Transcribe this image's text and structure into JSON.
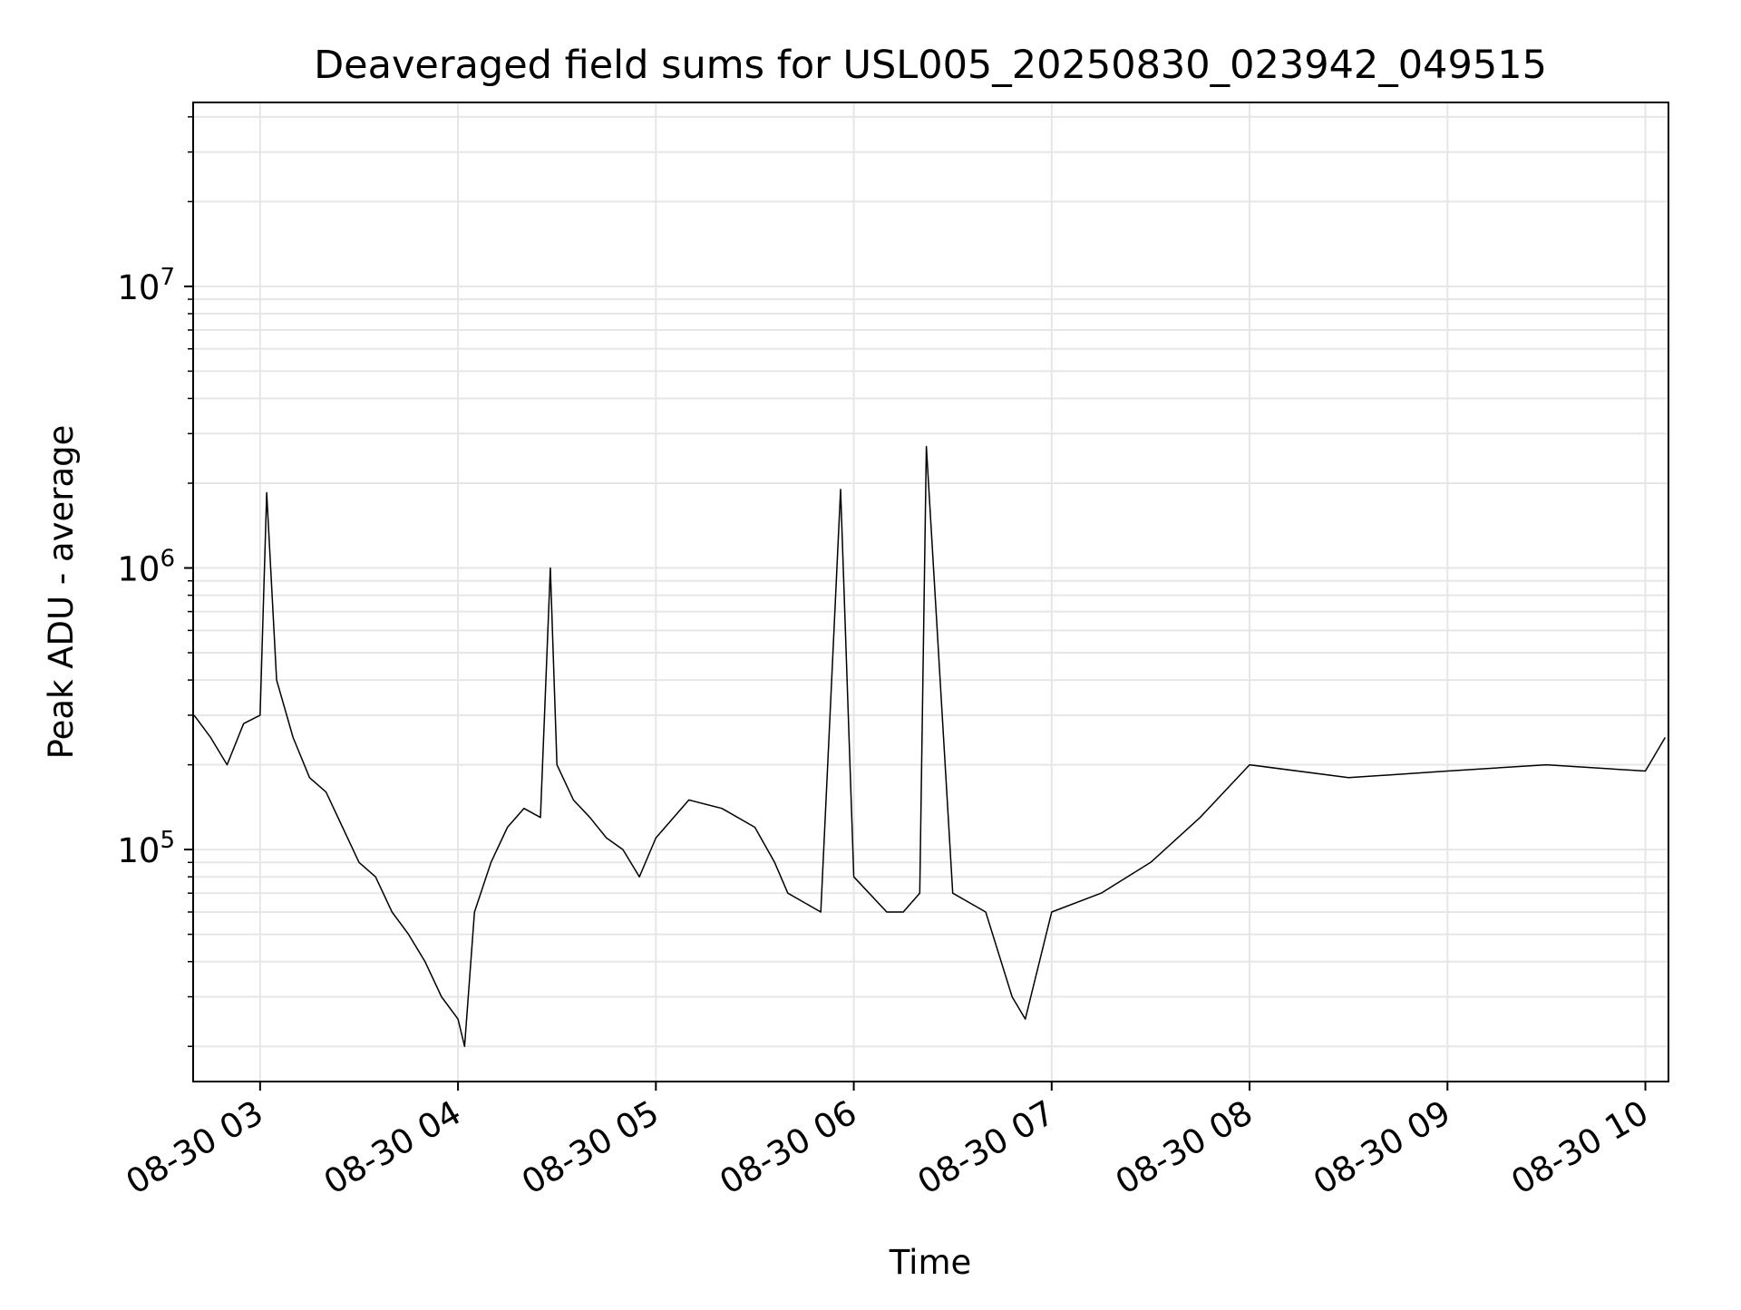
{
  "chart_data": {
    "type": "line",
    "title": "Deaveraged field sums for USL005_20250830_023942_049515",
    "xlabel": "Time",
    "ylabel": "Peak ADU - average",
    "xlim": [
      "2025-08-30 02:39:42",
      "2025-08-30 10:07:00"
    ],
    "ylim": [
      15000,
      45000000
    ],
    "yscale": "log",
    "grid": true,
    "line_color": "#000000",
    "x_ticks": [
      {
        "value": "2025-08-30 03:00",
        "label": "08-30 03"
      },
      {
        "value": "2025-08-30 04:00",
        "label": "08-30 04"
      },
      {
        "value": "2025-08-30 05:00",
        "label": "08-30 05"
      },
      {
        "value": "2025-08-30 06:00",
        "label": "08-30 06"
      },
      {
        "value": "2025-08-30 07:00",
        "label": "08-30 07"
      },
      {
        "value": "2025-08-30 08:00",
        "label": "08-30 08"
      },
      {
        "value": "2025-08-30 09:00",
        "label": "08-30 09"
      },
      {
        "value": "2025-08-30 10:00",
        "label": "08-30 10"
      }
    ],
    "y_ticks": [
      {
        "value": 100000,
        "base": "10",
        "exp": "5"
      },
      {
        "value": 1000000,
        "base": "10",
        "exp": "6"
      },
      {
        "value": 10000000,
        "base": "10",
        "exp": "7"
      }
    ],
    "series": [
      {
        "x": [
          "2025-08-30 02:40",
          "2025-08-30 02:45",
          "2025-08-30 02:50",
          "2025-08-30 02:55",
          "2025-08-30 03:00",
          "2025-08-30 03:02",
          "2025-08-30 03:05",
          "2025-08-30 03:10",
          "2025-08-30 03:15",
          "2025-08-30 03:20",
          "2025-08-30 03:25",
          "2025-08-30 03:30",
          "2025-08-30 03:35",
          "2025-08-30 03:40",
          "2025-08-30 03:45",
          "2025-08-30 03:50",
          "2025-08-30 03:55",
          "2025-08-30 04:00",
          "2025-08-30 04:02",
          "2025-08-30 04:05",
          "2025-08-30 04:10",
          "2025-08-30 04:15",
          "2025-08-30 04:20",
          "2025-08-30 04:25",
          "2025-08-30 04:28",
          "2025-08-30 04:30",
          "2025-08-30 04:35",
          "2025-08-30 04:40",
          "2025-08-30 04:45",
          "2025-08-30 04:50",
          "2025-08-30 04:55",
          "2025-08-30 05:00",
          "2025-08-30 05:10",
          "2025-08-30 05:20",
          "2025-08-30 05:30",
          "2025-08-30 05:36",
          "2025-08-30 05:40",
          "2025-08-30 05:50",
          "2025-08-30 05:56",
          "2025-08-30 06:00",
          "2025-08-30 06:10",
          "2025-08-30 06:15",
          "2025-08-30 06:20",
          "2025-08-30 06:22",
          "2025-08-30 06:30",
          "2025-08-30 06:40",
          "2025-08-30 06:48",
          "2025-08-30 06:52",
          "2025-08-30 07:00",
          "2025-08-30 07:15",
          "2025-08-30 07:30",
          "2025-08-30 07:45",
          "2025-08-30 08:00",
          "2025-08-30 08:30",
          "2025-08-30 09:00",
          "2025-08-30 09:30",
          "2025-08-30 10:00",
          "2025-08-30 10:06"
        ],
        "y": [
          300000,
          250000,
          200000,
          280000,
          300000,
          1850000,
          400000,
          250000,
          180000,
          160000,
          120000,
          90000,
          80000,
          60000,
          50000,
          40000,
          30000,
          25000,
          20000,
          60000,
          90000,
          120000,
          140000,
          130000,
          1000000,
          200000,
          150000,
          130000,
          110000,
          100000,
          80000,
          110000,
          150000,
          140000,
          120000,
          90000,
          70000,
          60000,
          1900000,
          80000,
          60000,
          60000,
          70000,
          2700000,
          70000,
          60000,
          30000,
          25000,
          60000,
          70000,
          90000,
          130000,
          200000,
          180000,
          190000,
          200000,
          190000,
          250000
        ]
      }
    ]
  }
}
